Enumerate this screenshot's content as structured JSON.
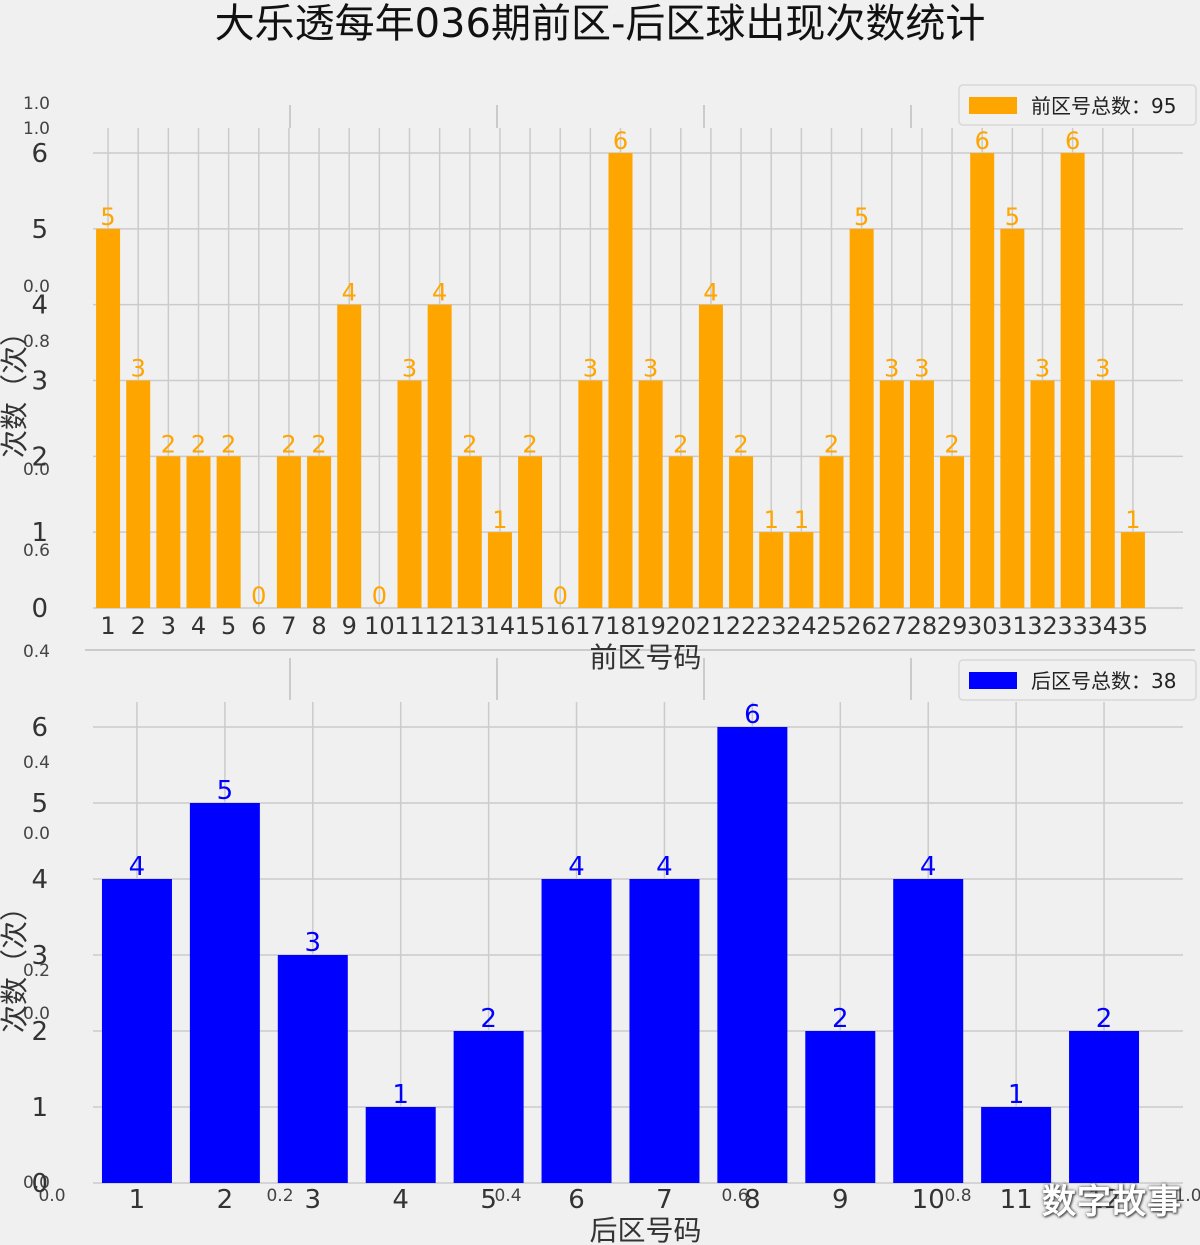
{
  "title": "大乐透每年036期前区-后区球出现次数统计",
  "watermark": "数字故事",
  "chart_data": [
    {
      "type": "bar",
      "xlabel": "前区号码",
      "ylabel": "次数（次）",
      "legend": "前区号总数：95",
      "legend_position": "top-right",
      "color": "#FFA500",
      "categories": [
        "1",
        "2",
        "3",
        "4",
        "5",
        "6",
        "7",
        "8",
        "9",
        "10",
        "11",
        "12",
        "13",
        "14",
        "15",
        "16",
        "17",
        "18",
        "19",
        "20",
        "21",
        "22",
        "23",
        "24",
        "25",
        "26",
        "27",
        "28",
        "29",
        "30",
        "31",
        "32",
        "33",
        "34",
        "35"
      ],
      "values": [
        5,
        3,
        2,
        2,
        2,
        0,
        2,
        2,
        4,
        0,
        3,
        4,
        2,
        1,
        2,
        0,
        3,
        6,
        3,
        2,
        4,
        2,
        1,
        1,
        2,
        5,
        3,
        3,
        2,
        6,
        5,
        3,
        6,
        3,
        1
      ],
      "yticks": [
        0,
        1,
        2,
        3,
        4,
        5,
        6
      ],
      "ylim": [
        0,
        6.3
      ],
      "grid": true
    },
    {
      "type": "bar",
      "xlabel": "后区号码",
      "ylabel": "次数（次）",
      "legend": "后区号总数：38",
      "legend_position": "top-right",
      "color": "#0000FF",
      "categories": [
        "1",
        "2",
        "3",
        "4",
        "5",
        "6",
        "7",
        "8",
        "9",
        "10",
        "11",
        "12"
      ],
      "values": [
        4,
        5,
        3,
        1,
        2,
        4,
        4,
        6,
        2,
        4,
        1,
        2
      ],
      "yticks": [
        0,
        1,
        2,
        3,
        4,
        5,
        6
      ],
      "ylim": [
        0,
        6.3
      ],
      "grid": true
    }
  ],
  "background_axis": {
    "tick_labels": [
      "0.0",
      "0.2",
      "0.4",
      "0.6",
      "0.8",
      "1.0"
    ]
  }
}
